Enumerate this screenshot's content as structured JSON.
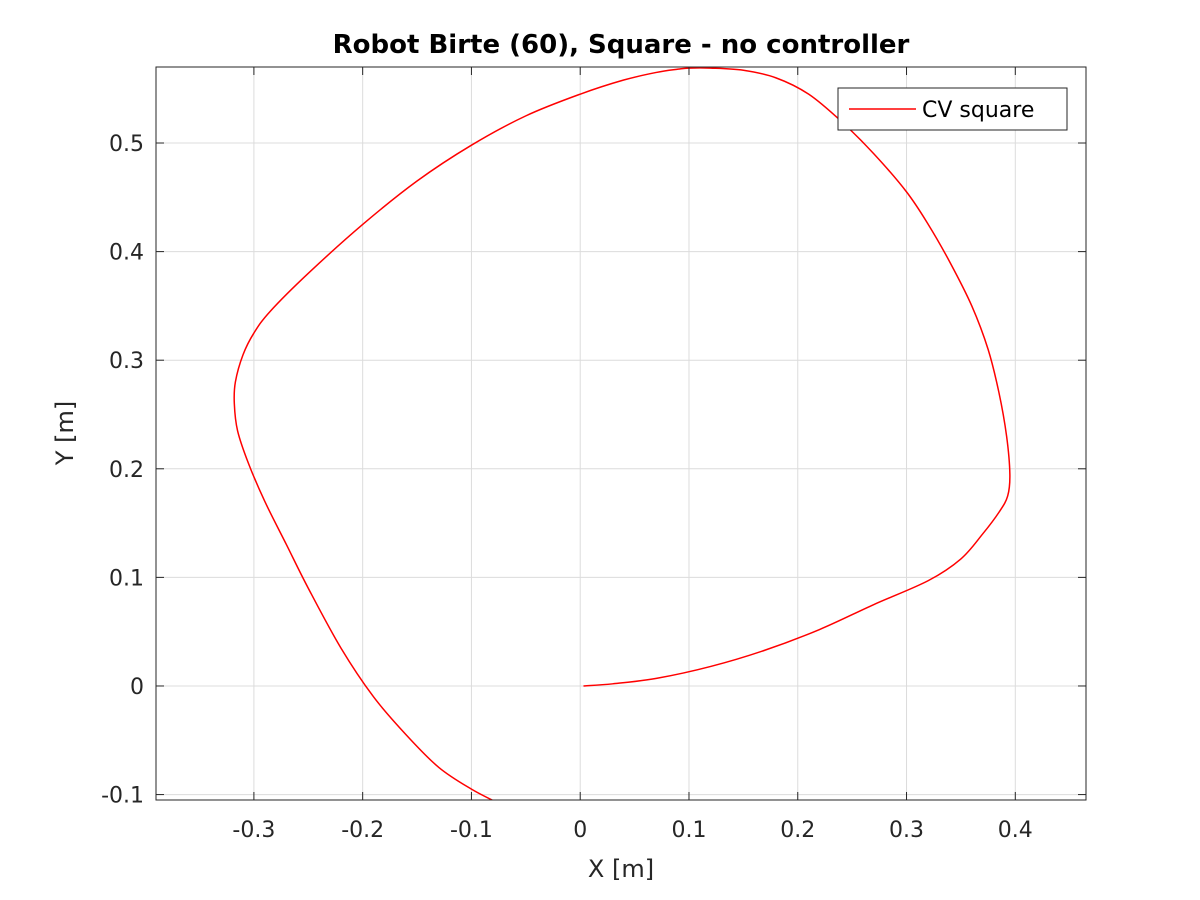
{
  "chart_data": {
    "type": "line",
    "title": "Robot Birte (60), Square - no controller",
    "xlabel": "X [m]",
    "ylabel": "Y [m]",
    "xlim": [
      -0.39,
      0.465
    ],
    "ylim": [
      -0.105,
      0.57
    ],
    "xticks": [
      -0.3,
      -0.2,
      -0.1,
      0,
      0.1,
      0.2,
      0.3,
      0.4
    ],
    "xtick_labels": [
      "-0.3",
      "-0.2",
      "-0.1",
      "0",
      "0.1",
      "0.2",
      "0.3",
      "0.4"
    ],
    "yticks": [
      -0.1,
      0,
      0.1,
      0.2,
      0.3,
      0.4,
      0.5
    ],
    "ytick_labels": [
      "-0.1",
      "0",
      "0.1",
      "0.2",
      "0.3",
      "0.4",
      "0.5"
    ],
    "grid": true,
    "legend_position": "top-right",
    "series": [
      {
        "name": "CV square",
        "color": "#ff0000",
        "x": [
          0.003,
          0.03,
          0.07,
          0.12,
          0.17,
          0.22,
          0.27,
          0.32,
          0.35,
          0.37,
          0.385,
          0.393,
          0.395,
          0.392,
          0.385,
          0.375,
          0.36,
          0.34,
          0.32,
          0.3,
          0.27,
          0.24,
          0.21,
          0.18,
          0.15,
          0.12,
          0.1,
          0.09,
          0.07,
          0.04,
          0.0,
          -0.05,
          -0.1,
          -0.15,
          -0.2,
          -0.25,
          -0.285,
          -0.3,
          -0.31,
          -0.317,
          -0.318,
          -0.315,
          -0.305,
          -0.29,
          -0.27,
          -0.25,
          -0.22,
          -0.19,
          -0.16,
          -0.13,
          -0.1,
          -0.075
        ],
        "y": [
          0.0,
          0.002,
          0.007,
          0.018,
          0.033,
          0.052,
          0.075,
          0.097,
          0.117,
          0.14,
          0.16,
          0.175,
          0.195,
          0.23,
          0.27,
          0.31,
          0.35,
          0.39,
          0.425,
          0.455,
          0.49,
          0.52,
          0.545,
          0.56,
          0.567,
          0.569,
          0.569,
          0.568,
          0.565,
          0.558,
          0.545,
          0.525,
          0.498,
          0.465,
          0.425,
          0.38,
          0.345,
          0.325,
          0.305,
          0.28,
          0.26,
          0.235,
          0.205,
          0.17,
          0.13,
          0.09,
          0.035,
          -0.01,
          -0.045,
          -0.075,
          -0.095,
          -0.108
        ]
      }
    ]
  }
}
